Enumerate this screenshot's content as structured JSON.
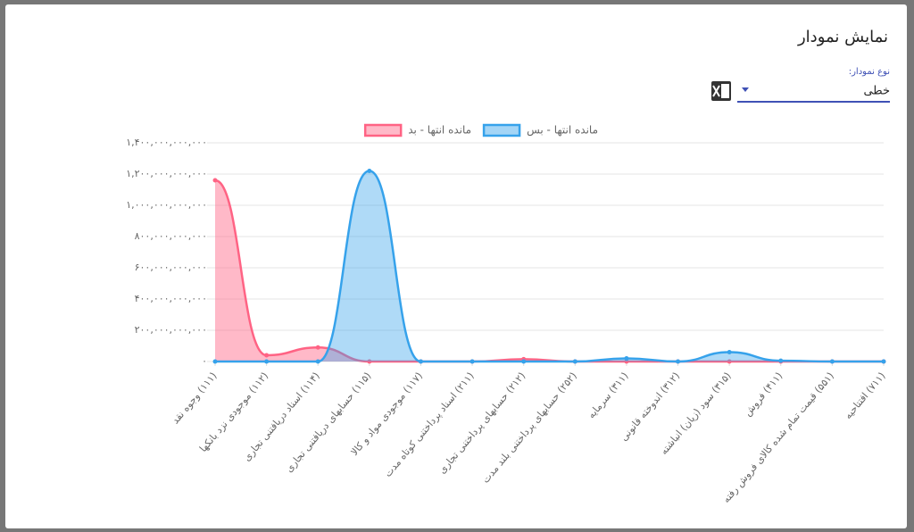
{
  "dialog": {
    "title": "نمایش نمودار",
    "select_label": "نوع نمودار:",
    "select_value": "خطی"
  },
  "chart_data": {
    "type": "line",
    "categories": [
      "(۱۱۱) وجوه نقد",
      "(۱۱۲) موجودی نزد بانکها",
      "(۱۱۴) اسناد دریافتنی تجاری",
      "(۱۱۵) حسابهای دریافتنی تجاری",
      "(۱۱۷) موجودی مواد و کالا",
      "(۲۱۱) اسناد پرداختنی کوتاه مدت",
      "(۲۱۲) حسابهای پرداختنی تجاری",
      "(۲۵۲) حسابهای پرداختنی بلند مدت",
      "(۳۱۱) سرمایه",
      "(۳۱۲) اندوخته قانونی",
      "(۳۱۵) سود (زیان) انباشته",
      "(۴۱۱) فروش",
      "(۵۵۱) قیمت تمام شده کالای فروش رفته",
      "(۷۱۱) افتتاحیه"
    ],
    "series": [
      {
        "name": "مانده انتها - بد",
        "color": "#ff6384",
        "values": [
          1160000000000,
          40000000000,
          90000000000,
          0,
          0,
          0,
          15000000000,
          0,
          0,
          0,
          0,
          0,
          0,
          0
        ]
      },
      {
        "name": "مانده انتها - بس",
        "color": "#36a2eb",
        "values": [
          0,
          0,
          0,
          1220000000000,
          0,
          0,
          0,
          0,
          20000000000,
          0,
          60000000000,
          5000000000,
          0,
          0
        ]
      }
    ],
    "ylim": [
      0,
      1400000000000
    ],
    "yticks": [
      {
        "value": 0,
        "label": "۰"
      },
      {
        "value": 200000000000,
        "label": "۲۰۰,۰۰۰,۰۰۰,۰۰۰"
      },
      {
        "value": 400000000000,
        "label": "۴۰۰,۰۰۰,۰۰۰,۰۰۰"
      },
      {
        "value": 600000000000,
        "label": "۶۰۰,۰۰۰,۰۰۰,۰۰۰"
      },
      {
        "value": 800000000000,
        "label": "۸۰۰,۰۰۰,۰۰۰,۰۰۰"
      },
      {
        "value": 1000000000000,
        "label": "۱,۰۰۰,۰۰۰,۰۰۰,۰۰۰"
      },
      {
        "value": 1200000000000,
        "label": "۱,۲۰۰,۰۰۰,۰۰۰,۰۰۰"
      },
      {
        "value": 1400000000000,
        "label": "۱,۴۰۰,۰۰۰,۰۰۰,۰۰۰"
      }
    ],
    "grid": true,
    "legend": "top"
  }
}
